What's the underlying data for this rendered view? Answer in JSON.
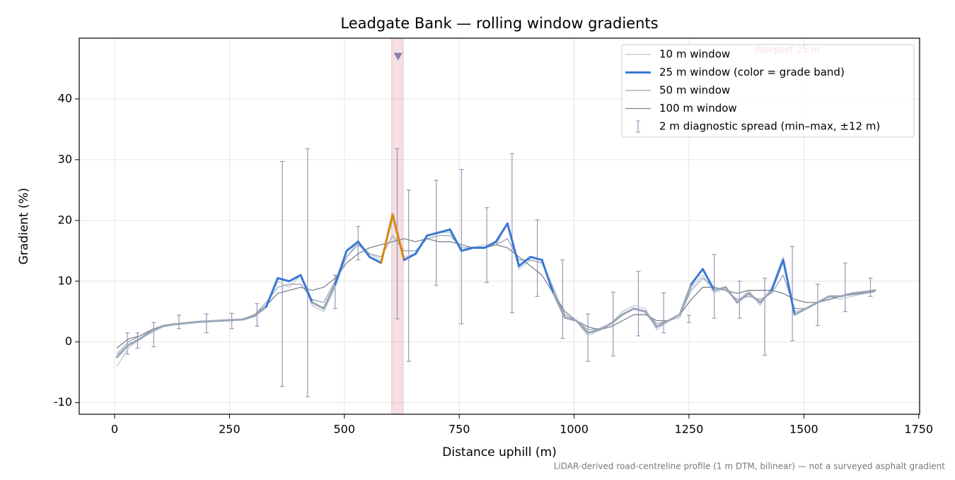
{
  "chart_data": {
    "type": "line",
    "title": "Leadgate Bank — rolling window gradients",
    "x_label": "Distance uphill (m)",
    "y_label": "Gradient (%)",
    "footnote": "LiDAR-derived road-centreline profile (1 m DTM, bilinear) — not a surveyed asphalt gradient",
    "xlim": [
      -77,
      1752
    ],
    "ylim": [
      -11.9,
      50
    ],
    "xticks": [
      0,
      250,
      500,
      750,
      1000,
      1250,
      1500,
      1750
    ],
    "yticks": [
      -10,
      0,
      10,
      20,
      30,
      40
    ],
    "grid": true,
    "legend": "upper right",
    "x": [
      5,
      30,
      55,
      80,
      105,
      130,
      155,
      180,
      205,
      230,
      255,
      280,
      305,
      330,
      355,
      380,
      405,
      430,
      455,
      480,
      505,
      530,
      555,
      580,
      605,
      630,
      655,
      680,
      705,
      730,
      755,
      780,
      805,
      830,
      855,
      880,
      905,
      930,
      955,
      980,
      1005,
      1030,
      1055,
      1080,
      1105,
      1130,
      1155,
      1180,
      1205,
      1230,
      1255,
      1280,
      1305,
      1330,
      1355,
      1380,
      1405,
      1430,
      1455,
      1480,
      1505,
      1530,
      1555,
      1580,
      1605,
      1630,
      1655
    ],
    "series": [
      {
        "name": "10 m window",
        "color": "#c5cdd6",
        "width": 1.5,
        "values": [
          -4,
          -1,
          0.5,
          1.5,
          2.5,
          3,
          3,
          3.2,
          3.5,
          3.5,
          3.6,
          3.8,
          4.5,
          6,
          10,
          9,
          11,
          6,
          5,
          9,
          14,
          16.5,
          14.5,
          13.5,
          20,
          14,
          14.5,
          17.5,
          18,
          18,
          15,
          15.5,
          16,
          16,
          19.5,
          12,
          13.5,
          13,
          9,
          4,
          3.5,
          1,
          2,
          3,
          5,
          6,
          5.5,
          2,
          3.5,
          4,
          9,
          11,
          8,
          9,
          6.5,
          8.5,
          6,
          9,
          14,
          5,
          5.5,
          6.5,
          7.5,
          7,
          7.5,
          8,
          8.5
        ]
      },
      {
        "name": "25 m window (color = grade band)",
        "color": "#3a78d4",
        "width": 3,
        "banded": true,
        "values": [
          -2.5,
          -0.5,
          0.5,
          1.8,
          2.6,
          2.9,
          3.1,
          3.3,
          3.4,
          3.5,
          3.6,
          3.7,
          4.3,
          5.8,
          10.5,
          10,
          11,
          6.5,
          5.5,
          9.5,
          15,
          16.5,
          14,
          13,
          21,
          13.5,
          14.5,
          17.5,
          18,
          18.5,
          15,
          15.5,
          15.5,
          16.5,
          19.5,
          12.5,
          14,
          13.5,
          8,
          4,
          3.5,
          1.5,
          2,
          3,
          4.5,
          5.5,
          5,
          2.5,
          3.5,
          4.5,
          9.5,
          12,
          8.5,
          9,
          6.5,
          8,
          6.5,
          8.5,
          13.5,
          4.5,
          5.5,
          6.5,
          7.5,
          7.5,
          8,
          8.2,
          8.5
        ]
      },
      {
        "name": "50 m window",
        "color": "#9aa6b8",
        "width": 1.3,
        "values": [
          -2,
          0,
          1,
          2,
          2.7,
          3,
          3.1,
          3.3,
          3.4,
          3.5,
          3.6,
          3.8,
          4.5,
          6.5,
          9,
          9.5,
          9.5,
          7,
          6.5,
          10,
          14,
          16,
          14.5,
          14,
          17.5,
          15,
          15,
          17,
          17.5,
          17.5,
          15.5,
          15.5,
          15.5,
          16,
          17,
          13.5,
          13.5,
          13,
          8.5,
          4.5,
          3.5,
          2,
          2.2,
          3,
          4.5,
          5.5,
          5,
          3,
          3.5,
          4.5,
          8.5,
          10.5,
          9,
          8.5,
          7,
          7.5,
          7,
          8,
          11,
          5.5,
          5.5,
          6.5,
          7,
          7.5,
          7.8,
          8,
          8.3
        ]
      },
      {
        "name": "100 m window",
        "color": "#7c8390",
        "width": 1.3,
        "values": [
          -1,
          0.5,
          1,
          2,
          2.7,
          3,
          3.1,
          3.3,
          3.4,
          3.5,
          3.5,
          3.8,
          4.5,
          6,
          8,
          8.5,
          9,
          8.5,
          9,
          10.5,
          13,
          14.5,
          15.5,
          16,
          16.5,
          17,
          16.5,
          17,
          16.5,
          16.5,
          16,
          15.5,
          15.5,
          16,
          15.5,
          14,
          12.5,
          11,
          8,
          5,
          3.5,
          2.5,
          2,
          2.5,
          3.5,
          4.5,
          4.5,
          3.5,
          3.5,
          4.5,
          7,
          9,
          9,
          8.5,
          8,
          8.5,
          8.5,
          8.5,
          8,
          7,
          6.5,
          6.5,
          7,
          7.5,
          7.8,
          8,
          8.3
        ]
      }
    ],
    "bands": {
      "thresholds": [
        10,
        20
      ],
      "colors": [
        "#9aa6b8",
        "#3a78d4",
        "#d9860f"
      ]
    },
    "error_bars": {
      "name": "2 m diagnostic spread (min–max, ±12 m)",
      "color": "#9a94b8",
      "x": [
        28,
        50,
        85,
        140,
        200,
        255,
        310,
        365,
        420,
        480,
        530,
        615,
        640,
        700,
        755,
        810,
        865,
        920,
        975,
        1030,
        1085,
        1140,
        1195,
        1250,
        1305,
        1360,
        1415,
        1475,
        1530,
        1590,
        1645
      ],
      "low": [
        -2,
        -1,
        -0.8,
        2.2,
        1.5,
        2.2,
        2.6,
        -7.3,
        -9,
        5.5,
        13.5,
        3.8,
        -3.2,
        9.3,
        3,
        9.8,
        4.8,
        7.5,
        0.6,
        -3.2,
        -2.3,
        1,
        1.5,
        3.2,
        3.9,
        3.9,
        -2.2,
        0.2,
        2.7,
        5,
        7.5
      ],
      "high": [
        1.5,
        1.5,
        3.2,
        4.4,
        4.6,
        4.7,
        6.3,
        29.7,
        31.8,
        11,
        19,
        31.8,
        25,
        26.6,
        28.4,
        22.1,
        31,
        20.1,
        13.5,
        4.6,
        8.2,
        11.6,
        8.1,
        4.4,
        14.4,
        10,
        10.5,
        15.7,
        9.5,
        13,
        10.5
      ]
    },
    "annotation": {
      "text": "steepest 25 m",
      "x": 617,
      "y": 47,
      "x0": 603,
      "x1": 628,
      "color": "#c0283a"
    }
  }
}
